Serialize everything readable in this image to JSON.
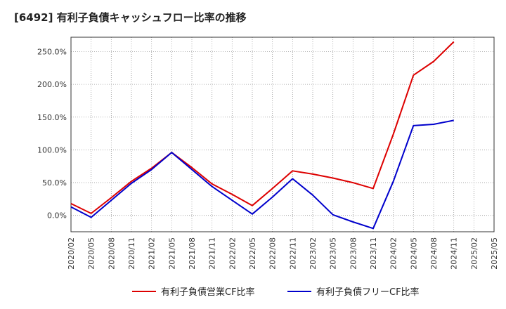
{
  "chart_data": {
    "type": "line",
    "title": "[6492]  有利子負債キャッシュフロー比率の推移",
    "x_ticks": [
      "2020/02",
      "2020/05",
      "2020/08",
      "2020/11",
      "2021/02",
      "2021/05",
      "2021/08",
      "2021/11",
      "2022/02",
      "2022/05",
      "2022/08",
      "2022/11",
      "2023/02",
      "2023/05",
      "2023/08",
      "2023/11",
      "2024/02",
      "2024/05",
      "2024/08",
      "2024/11",
      "2025/02",
      "2025/05"
    ],
    "y_ticks": [
      "0.0%",
      "50.0%",
      "100.0%",
      "150.0%",
      "200.0%",
      "250.0%"
    ],
    "ylim": [
      -25,
      272
    ],
    "grid": true,
    "legend_position": "bottom",
    "series": [
      {
        "name": "有利子負債営業CF比率",
        "color": "#dd0000",
        "values": [
          18,
          3,
          27,
          52,
          72,
          96,
          73,
          48,
          32,
          15,
          41,
          68,
          63,
          57,
          50,
          41,
          124,
          214,
          235,
          265,
          null,
          null
        ]
      },
      {
        "name": "有利子負債フリーCF比率",
        "color": "#0000cc",
        "values": [
          13,
          -3,
          23,
          49,
          70,
          96,
          70,
          44,
          23,
          2,
          28,
          56,
          31,
          1,
          -10,
          -20,
          52,
          137,
          139,
          145,
          null,
          null
        ]
      }
    ]
  }
}
